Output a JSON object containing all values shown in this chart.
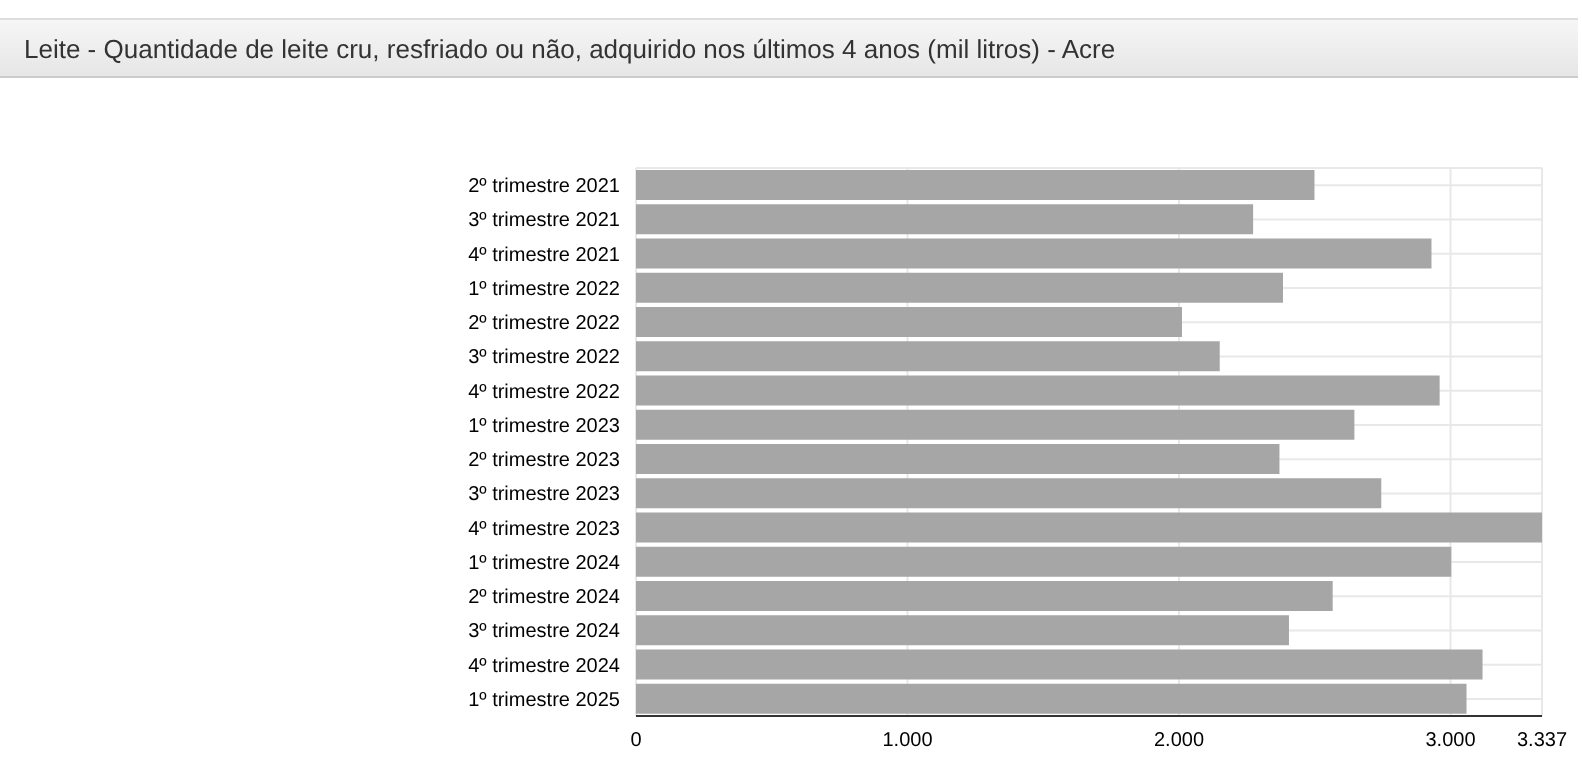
{
  "chart_data": {
    "type": "bar",
    "orientation": "horizontal",
    "title": "Leite - Quantidade de leite cru, resfriado ou não, adquirido nos últimos 4 anos (mil litros) - Acre",
    "categories": [
      "2º trimestre 2021",
      "3º trimestre 2021",
      "4º trimestre 2021",
      "1º trimestre 2022",
      "2º trimestre 2022",
      "3º trimestre 2022",
      "4º trimestre 2022",
      "1º trimestre 2023",
      "2º trimestre 2023",
      "3º trimestre 2023",
      "4º trimestre 2023",
      "1º trimestre 2024",
      "2º trimestre 2024",
      "3º trimestre 2024",
      "4º trimestre 2024",
      "1º trimestre 2025"
    ],
    "values": [
      2499,
      2273,
      2930,
      2383,
      2011,
      2150,
      2960,
      2646,
      2370,
      2745,
      3337,
      3003,
      2566,
      2405,
      3118,
      3059
    ],
    "color": "#a6a6a6",
    "xlim": [
      0,
      3337
    ],
    "xticks": [
      0,
      {
        "value": 1000,
        "label": "1.000"
      },
      {
        "value": 2000,
        "label": "2.000"
      },
      {
        "value": 3000,
        "label": "3.000"
      },
      {
        "value": 3337,
        "label": "3.337"
      }
    ],
    "grid": true
  }
}
